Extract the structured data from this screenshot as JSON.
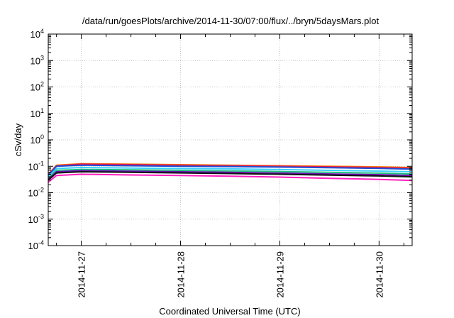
{
  "chart_data": {
    "type": "line",
    "title": "/data/run/goesPlots/archive/2014-11-30/07:00/flux/../bryn/5daysMars.plot",
    "xlabel": "Coordinated Universal Time (UTC)",
    "ylabel": "cSv/day",
    "yscale": "log",
    "ylim": [
      0.0001,
      10000
    ],
    "xlim": [
      "2014-11-26T16:00",
      "2014-11-30T08:00"
    ],
    "y_ticks": [
      {
        "base": "10",
        "exp": "-4"
      },
      {
        "base": "10",
        "exp": "-3"
      },
      {
        "base": "10",
        "exp": "-2"
      },
      {
        "base": "10",
        "exp": "-1"
      },
      {
        "base": "10",
        "exp": "0"
      },
      {
        "base": "10",
        "exp": "1"
      },
      {
        "base": "10",
        "exp": "2"
      },
      {
        "base": "10",
        "exp": "3"
      },
      {
        "base": "10",
        "exp": "4"
      }
    ],
    "x_ticks": [
      "2014-11-27",
      "2014-11-28",
      "2014-11-29",
      "2014-11-30"
    ],
    "grid": true,
    "legend": "none",
    "x": [
      "2014-11-26T16:00",
      "2014-11-26T18:00",
      "2014-11-27T00:00",
      "2014-11-27T12:00",
      "2014-11-28T00:00",
      "2014-11-28T12:00",
      "2014-11-29T00:00",
      "2014-11-29T12:00",
      "2014-11-30T00:00",
      "2014-11-30T08:00"
    ],
    "series": [
      {
        "color": "#ff8000",
        "values": [
          0.05,
          0.11,
          0.125,
          0.12,
          0.115,
          0.11,
          0.105,
          0.1,
          0.095,
          0.09
        ]
      },
      {
        "color": "#e6194b",
        "values": [
          0.048,
          0.105,
          0.12,
          0.115,
          0.11,
          0.105,
          0.1,
          0.095,
          0.09,
          0.085
        ]
      },
      {
        "color": "#1f4fd8",
        "values": [
          0.045,
          0.1,
          0.11,
          0.105,
          0.1,
          0.098,
          0.093,
          0.088,
          0.083,
          0.078
        ]
      },
      {
        "color": "#3ad0ff",
        "values": [
          0.04,
          0.082,
          0.09,
          0.086,
          0.082,
          0.08,
          0.075,
          0.07,
          0.066,
          0.062
        ]
      },
      {
        "color": "#20c080",
        "values": [
          0.036,
          0.07,
          0.076,
          0.073,
          0.07,
          0.067,
          0.063,
          0.059,
          0.055,
          0.051
        ]
      },
      {
        "color": "#6a0dad",
        "values": [
          0.032,
          0.062,
          0.068,
          0.065,
          0.062,
          0.059,
          0.055,
          0.051,
          0.048,
          0.045
        ]
      },
      {
        "color": "#111111",
        "values": [
          0.03,
          0.056,
          0.062,
          0.059,
          0.056,
          0.053,
          0.05,
          0.046,
          0.043,
          0.04
        ]
      },
      {
        "color": "#ff20c0",
        "values": [
          0.025,
          0.045,
          0.05,
          0.047,
          0.045,
          0.042,
          0.039,
          0.035,
          0.032,
          0.029
        ]
      }
    ]
  }
}
